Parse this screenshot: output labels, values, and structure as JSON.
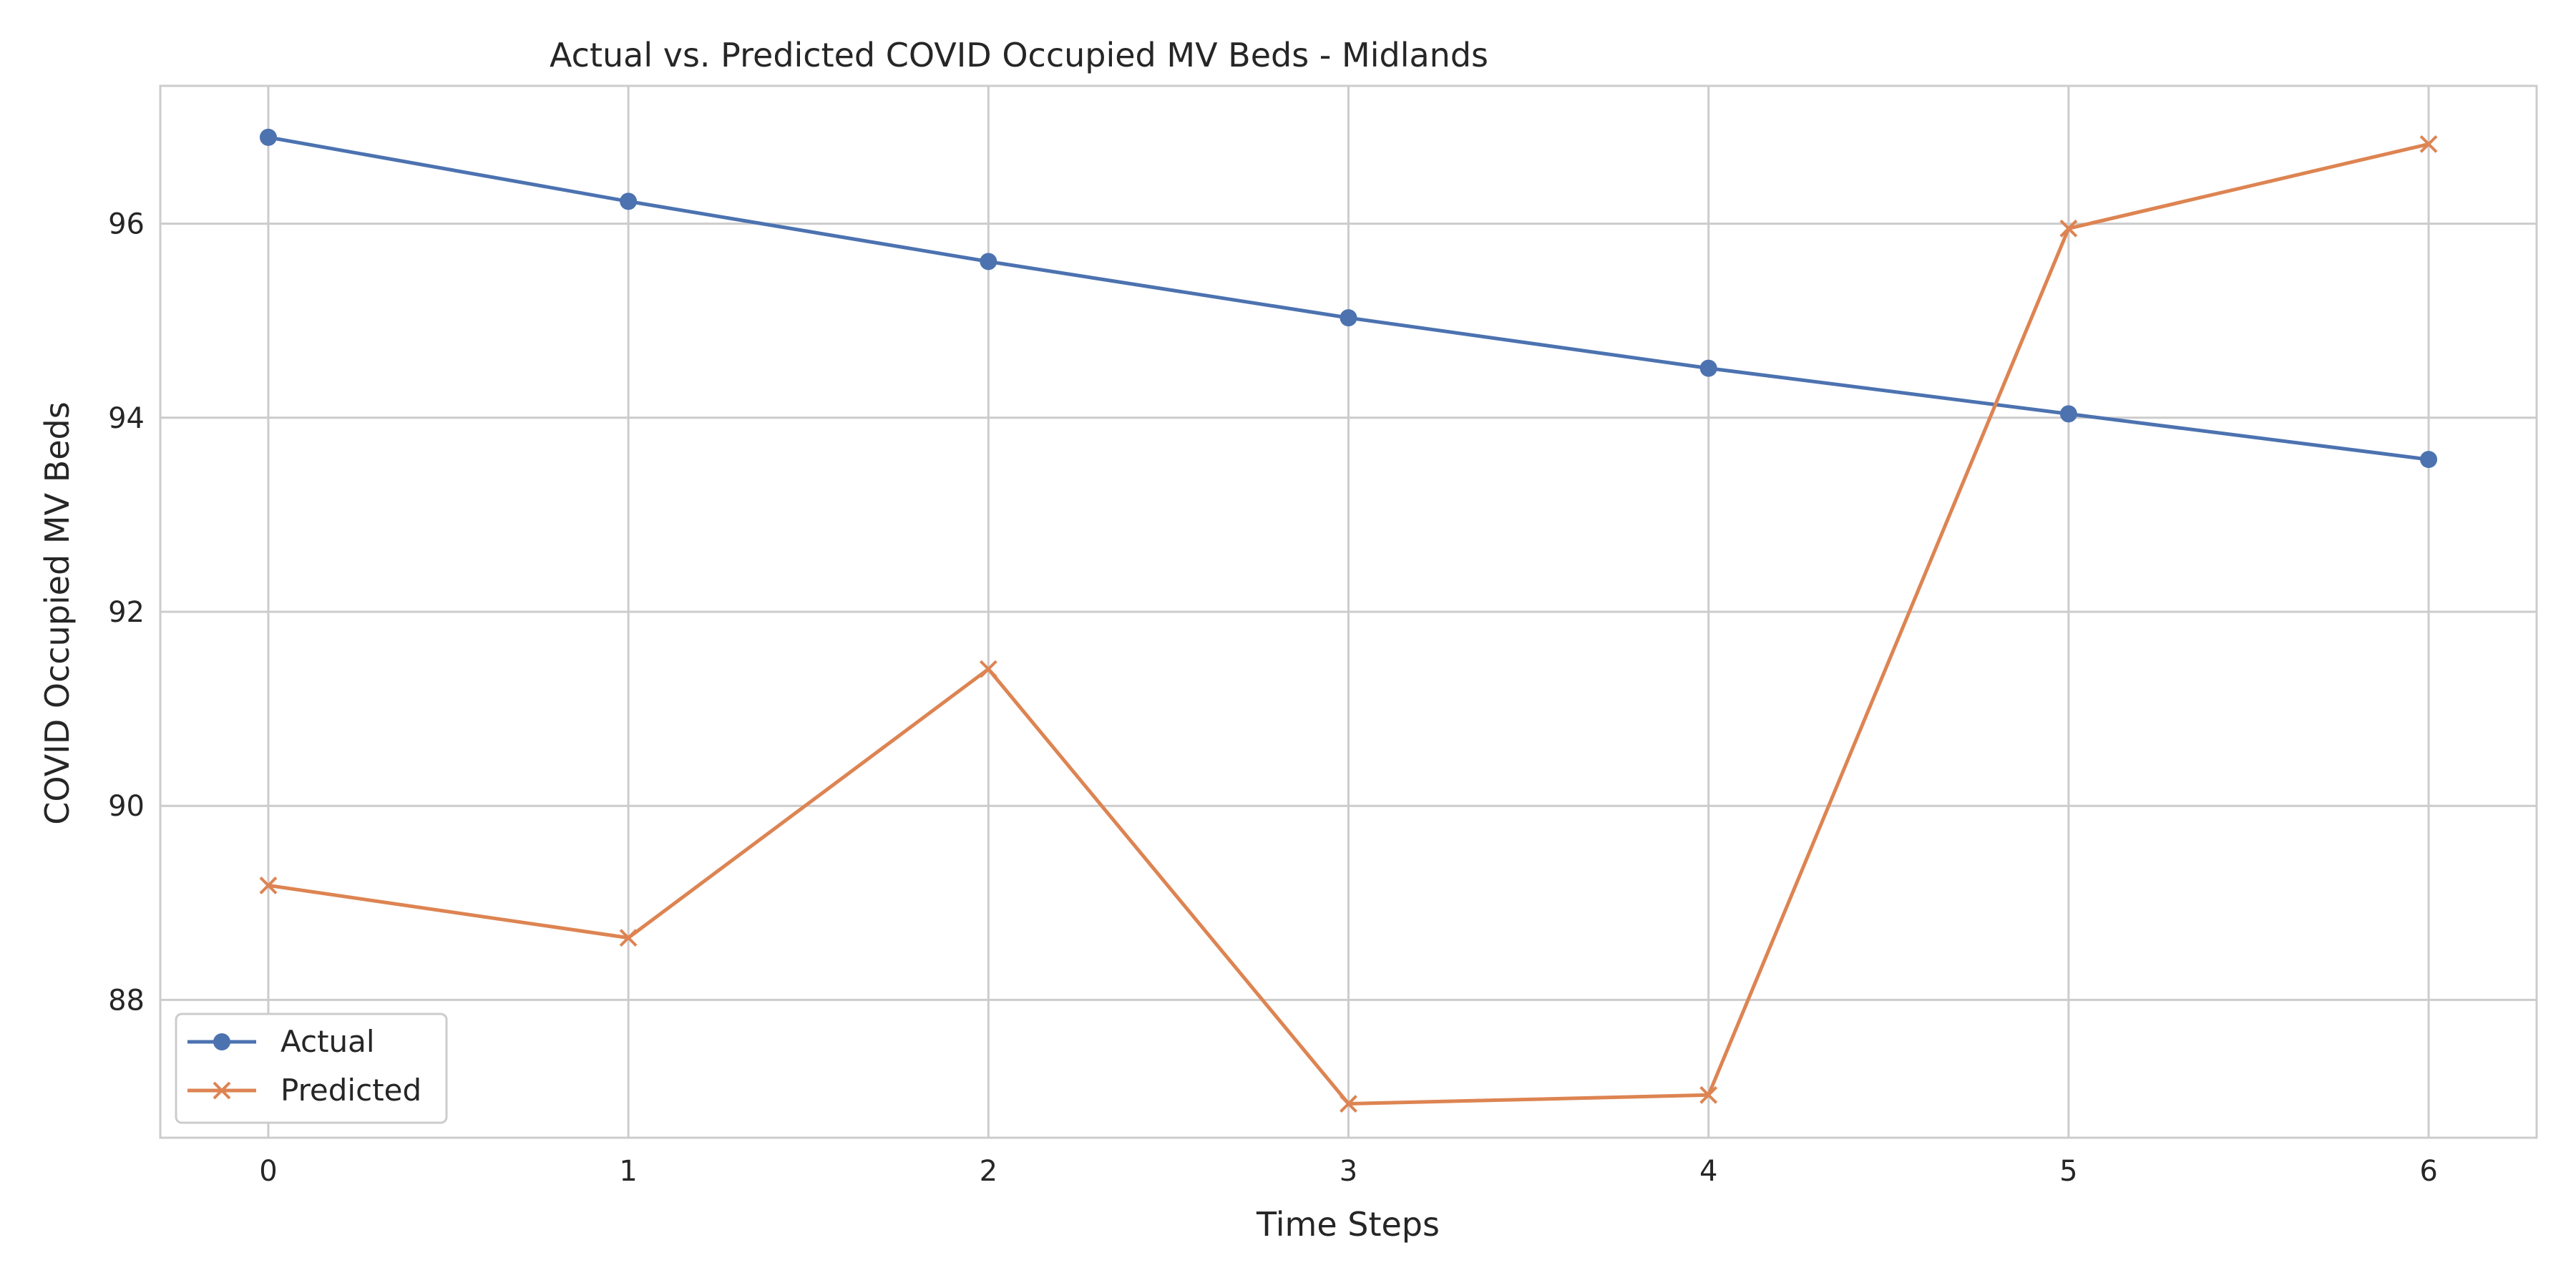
{
  "chart_data": {
    "type": "line",
    "title": "Actual vs. Predicted COVID Occupied MV Beds - Midlands",
    "xlabel": "Time Steps",
    "ylabel": "COVID Occupied MV Beds",
    "x": [
      0,
      1,
      2,
      3,
      4,
      5,
      6
    ],
    "xticks": [
      "0",
      "1",
      "2",
      "3",
      "4",
      "5",
      "6"
    ],
    "xlim": [
      -0.3,
      6.3
    ],
    "yticks": [
      "88",
      "90",
      "92",
      "94",
      "96"
    ],
    "ylim": [
      86.58,
      97.42
    ],
    "grid": true,
    "legend_position": "lower-left",
    "series": [
      {
        "name": "Actual",
        "marker": "circle",
        "color": "#4c72b0",
        "values": [
          96.89,
          96.23,
          95.61,
          95.03,
          94.51,
          94.04,
          93.57
        ]
      },
      {
        "name": "Predicted",
        "marker": "x",
        "color": "#dd8452",
        "values": [
          89.18,
          88.64,
          91.41,
          86.93,
          87.02,
          95.95,
          96.82
        ]
      }
    ]
  }
}
